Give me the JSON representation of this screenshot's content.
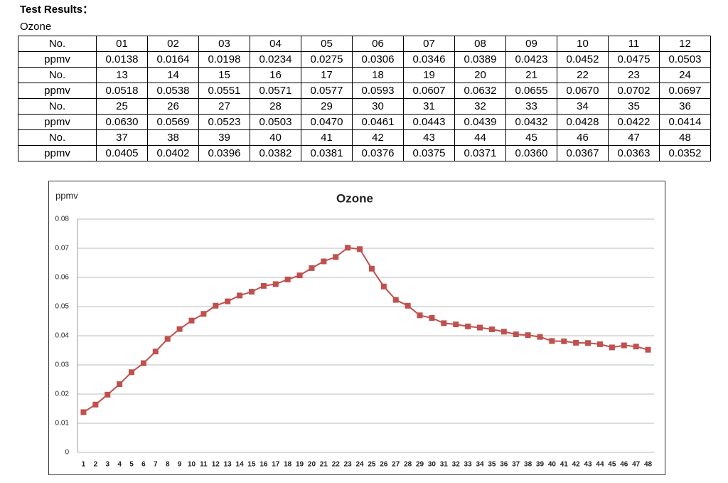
{
  "header": {
    "title": "Test Results：",
    "subtitle": "Ozone"
  },
  "table": {
    "rows": [
      [
        "No.",
        "01",
        "02",
        "03",
        "04",
        "05",
        "06",
        "07",
        "08",
        "09",
        "10",
        "11",
        "12"
      ],
      [
        "ppmv",
        "0.0138",
        "0.0164",
        "0.0198",
        "0.0234",
        "0.0275",
        "0.0306",
        "0.0346",
        "0.0389",
        "0.0423",
        "0.0452",
        "0.0475",
        "0.0503"
      ],
      [
        "No.",
        "13",
        "14",
        "15",
        "16",
        "17",
        "18",
        "19",
        "20",
        "21",
        "22",
        "23",
        "24"
      ],
      [
        "ppmv",
        "0.0518",
        "0.0538",
        "0.0551",
        "0.0571",
        "0.0577",
        "0.0593",
        "0.0607",
        "0.0632",
        "0.0655",
        "0.0670",
        "0.0702",
        "0.0697"
      ],
      [
        "No.",
        "25",
        "26",
        "27",
        "28",
        "29",
        "30",
        "31",
        "32",
        "33",
        "34",
        "35",
        "36"
      ],
      [
        "ppmv",
        "0.0630",
        "0.0569",
        "0.0523",
        "0.0503",
        "0.0470",
        "0.0461",
        "0.0443",
        "0.0439",
        "0.0432",
        "0.0428",
        "0.0422",
        "0.0414"
      ],
      [
        "No.",
        "37",
        "38",
        "39",
        "40",
        "41",
        "42",
        "43",
        "44",
        "45",
        "46",
        "47",
        "48"
      ],
      [
        "ppmv",
        "0.0405",
        "0.0402",
        "0.0396",
        "0.0382",
        "0.0381",
        "0.0376",
        "0.0375",
        "0.0371",
        "0.0360",
        "0.0367",
        "0.0363",
        "0.0352"
      ]
    ]
  },
  "chart_data": {
    "type": "line",
    "title": "Ozone",
    "y_label": "ppmv",
    "categories": [
      "1",
      "2",
      "3",
      "4",
      "5",
      "6",
      "7",
      "8",
      "9",
      "10",
      "11",
      "12",
      "13",
      "14",
      "15",
      "16",
      "17",
      "18",
      "19",
      "20",
      "21",
      "22",
      "23",
      "24",
      "25",
      "26",
      "27",
      "28",
      "29",
      "30",
      "31",
      "32",
      "33",
      "34",
      "35",
      "36",
      "37",
      "38",
      "39",
      "40",
      "41",
      "42",
      "43",
      "44",
      "45",
      "46",
      "47",
      "48"
    ],
    "values": [
      0.0138,
      0.0164,
      0.0198,
      0.0234,
      0.0275,
      0.0306,
      0.0346,
      0.0389,
      0.0423,
      0.0452,
      0.0475,
      0.0503,
      0.0518,
      0.0538,
      0.0551,
      0.0571,
      0.0577,
      0.0593,
      0.0607,
      0.0632,
      0.0655,
      0.067,
      0.0702,
      0.0697,
      0.063,
      0.0569,
      0.0523,
      0.0503,
      0.047,
      0.0461,
      0.0443,
      0.0439,
      0.0432,
      0.0428,
      0.0422,
      0.0414,
      0.0405,
      0.0402,
      0.0396,
      0.0382,
      0.0381,
      0.0376,
      0.0375,
      0.0371,
      0.036,
      0.0367,
      0.0363,
      0.0352
    ],
    "color": "#c0504d",
    "ylim": [
      0,
      0.08
    ],
    "yticks": [
      0,
      0.01,
      0.02,
      0.03,
      0.04,
      0.05,
      0.06,
      0.07,
      0.08
    ],
    "grid": true
  }
}
